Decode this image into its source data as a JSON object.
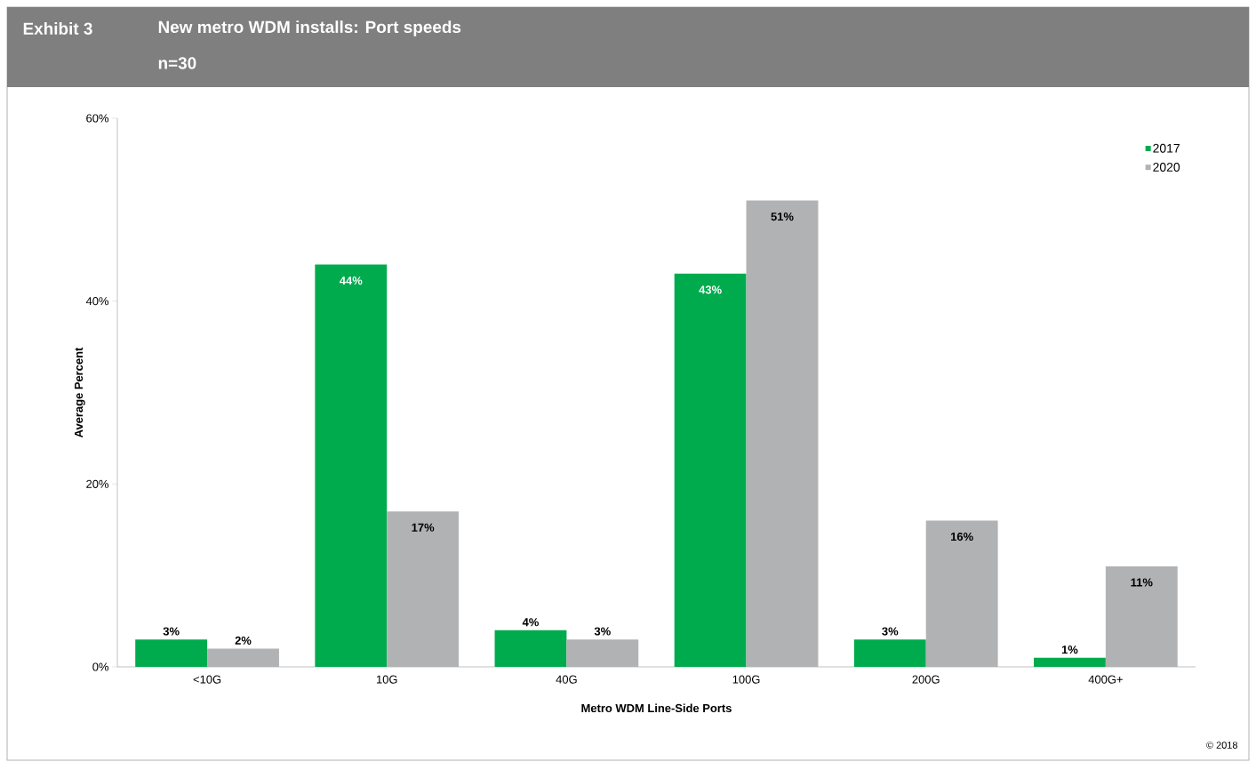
{
  "chart_data": {
    "type": "bar",
    "title": "New metro WDM installs: Port speeds",
    "subtitle": "n=30",
    "annotations": [
      "Exhibit 3",
      "© 2018"
    ],
    "xlabel": "Metro  WDM Line-Side Ports",
    "ylabel": "Average Percent",
    "categories": [
      "<10G",
      "10G",
      "40G",
      "100G",
      "200G",
      "400G+"
    ],
    "series": [
      {
        "name": "2017",
        "color": "#00ab4e",
        "values": [
          3,
          44,
          4,
          43,
          3,
          1
        ],
        "value_labels": [
          "3%",
          "44%",
          "4%",
          "43%",
          "3%",
          "1%"
        ]
      },
      {
        "name": "2020",
        "color": "#b1b2b4",
        "values": [
          2,
          17,
          3,
          51,
          16,
          11
        ],
        "value_labels": [
          "2%",
          "17%",
          "3%",
          "51%",
          "16%",
          "11%"
        ]
      }
    ],
    "ylim": [
      0,
      60
    ],
    "yticks": [
      {
        "value": 0,
        "label": "0%"
      },
      {
        "value": 20,
        "label": "20%"
      },
      {
        "value": 40,
        "label": "40%"
      },
      {
        "value": 60,
        "label": "60%"
      }
    ],
    "grid": false,
    "legend": "top right"
  }
}
